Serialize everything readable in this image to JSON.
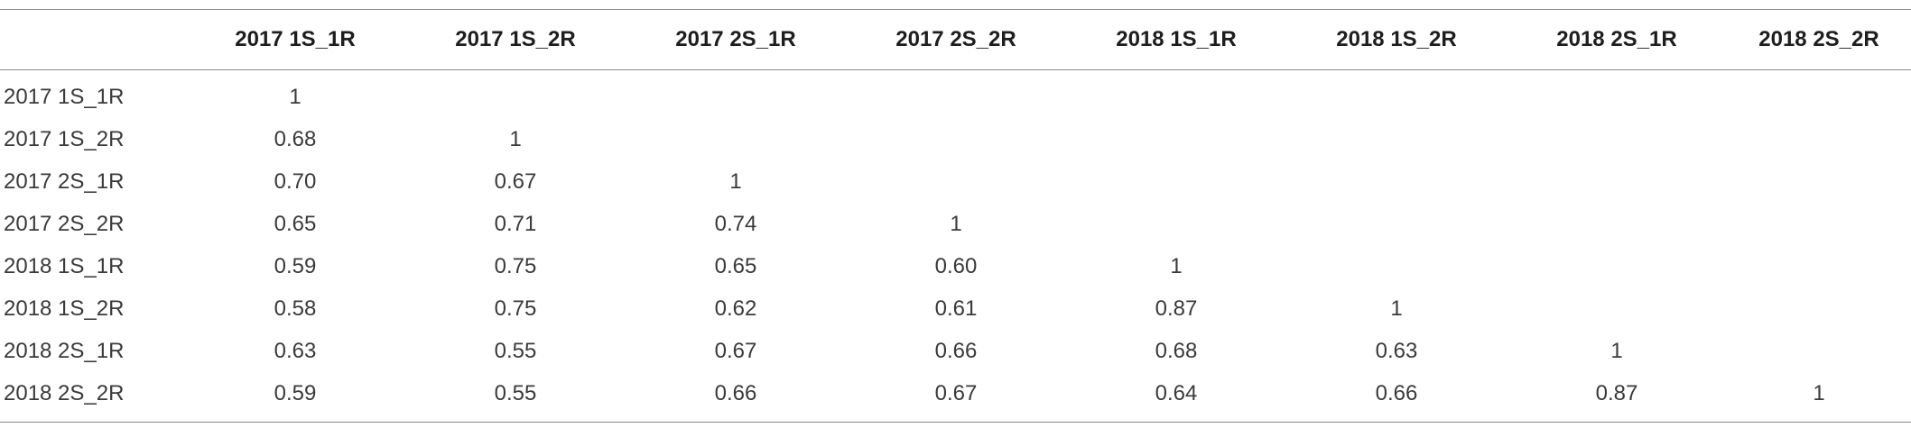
{
  "table": {
    "corner": "",
    "columns": [
      "2017 1S_1R",
      "2017 1S_2R",
      "2017 2S_1R",
      "2017 2S_2R",
      "2018 1S_1R",
      "2018 1S_2R",
      "2018 2S_1R",
      "2018 2S_2R"
    ],
    "rows": [
      {
        "label": "2017 1S_1R",
        "cells": [
          "1",
          "",
          "",
          "",
          "",
          "",
          "",
          ""
        ]
      },
      {
        "label": "2017 1S_2R",
        "cells": [
          "0.68",
          "1",
          "",
          "",
          "",
          "",
          "",
          ""
        ]
      },
      {
        "label": "2017 2S_1R",
        "cells": [
          "0.70",
          "0.67",
          "1",
          "",
          "",
          "",
          "",
          ""
        ]
      },
      {
        "label": "2017 2S_2R",
        "cells": [
          "0.65",
          "0.71",
          "0.74",
          "1",
          "",
          "",
          "",
          ""
        ]
      },
      {
        "label": "2018 1S_1R",
        "cells": [
          "0.59",
          "0.75",
          "0.65",
          "0.60",
          "1",
          "",
          "",
          ""
        ]
      },
      {
        "label": "2018 1S_2R",
        "cells": [
          "0.58",
          "0.75",
          "0.62",
          "0.61",
          "0.87",
          "1",
          "",
          ""
        ]
      },
      {
        "label": "2018 2S_1R",
        "cells": [
          "0.63",
          "0.55",
          "0.67",
          "0.66",
          "0.68",
          "0.63",
          "1",
          ""
        ]
      },
      {
        "label": "2018 2S_2R",
        "cells": [
          "0.59",
          "0.55",
          "0.66",
          "0.67",
          "0.64",
          "0.66",
          "0.87",
          "1"
        ]
      }
    ]
  }
}
